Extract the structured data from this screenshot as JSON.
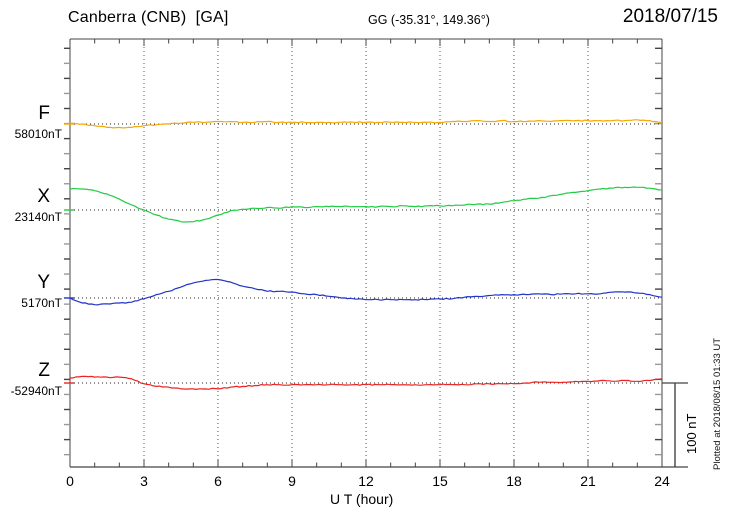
{
  "header": {
    "title": "Canberra (CNB)  [GA]",
    "coords": "GG (-35.31°, 149.36°)",
    "date": "2018/07/15"
  },
  "xaxis": {
    "label": "U T (hour)",
    "ticks": [
      0,
      3,
      6,
      9,
      12,
      15,
      18,
      21,
      24
    ],
    "minor_step_hours": 1,
    "range": [
      0,
      24
    ]
  },
  "scale_bar": {
    "label": "100 nT",
    "nT": 100
  },
  "footer_note": "Plotted at 2018/08/15 01:33 UT",
  "colors": {
    "F": "#f5a800",
    "X": "#22cc44",
    "Y": "#2233cc",
    "Z": "#ee2222",
    "frame": "#444444",
    "grid": "#555555",
    "baseline": "#222222",
    "tick_alt": "#999999"
  },
  "chart_data": {
    "type": "line",
    "title": "Canberra (CNB) [GA] magnetogram 2018/07/15",
    "xlabel": "U T (hour)",
    "x_unit": "hour UT",
    "x_start": 0,
    "x_step": 0.5,
    "x_range": [
      0,
      24
    ],
    "grid": "vertical dotted every 3 h; dotted horizontal baseline per trace",
    "scale": "100 nT per scale bar",
    "series": [
      {
        "name": "F",
        "baseline_label": "58010nT",
        "baseline_nT": 58010,
        "color_key": "F",
        "values": [
          58011,
          58010,
          58008,
          58006,
          58006,
          58006,
          58008,
          58009,
          58010,
          58011,
          58012,
          58012,
          58013,
          58013,
          58012,
          58012,
          58013,
          58012,
          58012,
          58012,
          58012,
          58012,
          58012,
          58012,
          58012,
          58012,
          58012,
          58012,
          58012,
          58012,
          58012,
          58013,
          58013,
          58014,
          58013,
          58014,
          58013,
          58013,
          58014,
          58013,
          58014,
          58014,
          58014,
          58014,
          58014,
          58014,
          58015,
          58014,
          58012
        ]
      },
      {
        "name": "X",
        "baseline_label": "23140nT",
        "baseline_nT": 23140,
        "color_key": "X",
        "values": [
          23165,
          23165,
          23163,
          23159,
          23153,
          23146,
          23140,
          23134,
          23129,
          23126,
          23126,
          23129,
          23134,
          23139,
          23141,
          23142,
          23143,
          23142,
          23144,
          23143,
          23144,
          23144,
          23144,
          23144,
          23144,
          23144,
          23144,
          23145,
          23144,
          23145,
          23145,
          23145,
          23146,
          23147,
          23147,
          23149,
          23151,
          23153,
          23154,
          23157,
          23159,
          23161,
          23163,
          23165,
          23166,
          23167,
          23167,
          23166,
          23164
        ]
      },
      {
        "name": "Y",
        "baseline_label": "5170nT",
        "baseline_nT": 5170,
        "color_key": "Y",
        "values": [
          5170,
          5164,
          5162,
          5163,
          5164,
          5165,
          5169,
          5174,
          5178,
          5183,
          5188,
          5191,
          5192,
          5189,
          5184,
          5181,
          5178,
          5178,
          5177,
          5175,
          5174,
          5172,
          5170,
          5169,
          5168,
          5168,
          5168,
          5168,
          5168,
          5168,
          5169,
          5169,
          5171,
          5172,
          5173,
          5174,
          5174,
          5174,
          5175,
          5174,
          5175,
          5175,
          5175,
          5175,
          5177,
          5177,
          5176,
          5174,
          5171
        ]
      },
      {
        "name": "Z",
        "baseline_label": "-52940nT",
        "baseline_nT": -52940,
        "color_key": "Z",
        "values": [
          -52934,
          -52932,
          -52933,
          -52933,
          -52933,
          -52935,
          -52941,
          -52944,
          -52945,
          -52947,
          -52947,
          -52947,
          -52947,
          -52945,
          -52944,
          -52943,
          -52942,
          -52942,
          -52942,
          -52942,
          -52942,
          -52942,
          -52942,
          -52942,
          -52942,
          -52942,
          -52942,
          -52942,
          -52942,
          -52942,
          -52942,
          -52942,
          -52942,
          -52941,
          -52941,
          -52941,
          -52941,
          -52940,
          -52939,
          -52939,
          -52939,
          -52938,
          -52938,
          -52937,
          -52938,
          -52937,
          -52938,
          -52937,
          -52935
        ]
      }
    ]
  }
}
